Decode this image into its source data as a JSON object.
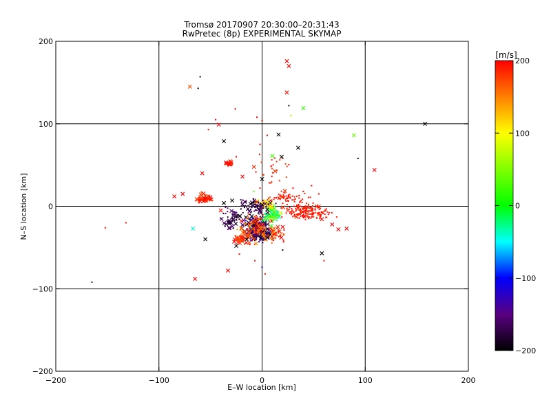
{
  "chart_data": {
    "type": "scatter",
    "title": "Tromsø 20170907 20:30:00–20:31:43",
    "subtitle": "RwPretec (8p) EXPERIMENTAL SKYMAP",
    "xlabel": "E–W location [km]",
    "ylabel": "N–S location [km]",
    "xlim": [
      -200,
      200
    ],
    "ylim": [
      -200,
      200
    ],
    "xticks": [
      -200,
      -100,
      0,
      100,
      200
    ],
    "yticks": [
      -200,
      -100,
      0,
      100,
      200
    ],
    "grid": true,
    "colorbar": {
      "label": "[m/s]",
      "min": -200,
      "max": 200,
      "ticks": [
        200,
        100,
        0,
        -100,
        -200
      ],
      "gradient": [
        [
          -200,
          "#000000"
        ],
        [
          -150,
          "#5a0080"
        ],
        [
          -100,
          "#0000ff"
        ],
        [
          -50,
          "#00ffff"
        ],
        [
          0,
          "#00ff00"
        ],
        [
          100,
          "#ffff00"
        ],
        [
          150,
          "#ff8000"
        ],
        [
          200,
          "#ff0000"
        ]
      ]
    },
    "crosses": [
      {
        "x": 24,
        "y": 176,
        "v": 200
      },
      {
        "x": 26,
        "y": 170,
        "v": 200
      },
      {
        "x": -70,
        "y": 145,
        "v": 170
      },
      {
        "x": 24,
        "y": 138,
        "v": 200
      },
      {
        "x": 40,
        "y": 119,
        "v": 20
      },
      {
        "x": 158,
        "y": 100,
        "v": -200
      },
      {
        "x": -42,
        "y": 99,
        "v": 200
      },
      {
        "x": 16,
        "y": 87,
        "v": -200
      },
      {
        "x": 89,
        "y": 86,
        "v": 40
      },
      {
        "x": -37,
        "y": 79,
        "v": -200
      },
      {
        "x": 35,
        "y": 71,
        "v": -200
      },
      {
        "x": 10,
        "y": 61,
        "v": 20
      },
      {
        "x": 19,
        "y": 60,
        "v": -200
      },
      {
        "x": -35,
        "y": 53,
        "v": 200
      },
      {
        "x": -32,
        "y": 51,
        "v": 200
      },
      {
        "x": 109,
        "y": 44,
        "v": 200
      },
      {
        "x": -58,
        "y": 40,
        "v": 200
      },
      {
        "x": -19,
        "y": 36,
        "v": 200
      },
      {
        "x": 0,
        "y": 33,
        "v": -200
      },
      {
        "x": -85,
        "y": 12,
        "v": 200
      },
      {
        "x": -77,
        "y": 15,
        "v": 200
      },
      {
        "x": -50,
        "y": 11,
        "v": 200
      },
      {
        "x": -55,
        "y": 9,
        "v": 200
      },
      {
        "x": -60,
        "y": 6,
        "v": 200
      },
      {
        "x": -37,
        "y": 4,
        "v": -200
      },
      {
        "x": -5,
        "y": 5,
        "v": 180
      },
      {
        "x": 3,
        "y": 3,
        "v": -150
      },
      {
        "x": 8,
        "y": 2,
        "v": 120
      },
      {
        "x": 12,
        "y": -3,
        "v": 30
      },
      {
        "x": 18,
        "y": -8,
        "v": 80
      },
      {
        "x": -10,
        "y": -12,
        "v": -200
      },
      {
        "x": -20,
        "y": -18,
        "v": 200
      },
      {
        "x": 5,
        "y": -15,
        "v": 20
      },
      {
        "x": 20,
        "y": -25,
        "v": 200
      },
      {
        "x": 9,
        "y": -24,
        "v": 20
      },
      {
        "x": -67,
        "y": -27,
        "v": -40
      },
      {
        "x": -55,
        "y": -40,
        "v": -200
      },
      {
        "x": -27,
        "y": -43,
        "v": 200
      },
      {
        "x": -15,
        "y": -40,
        "v": -200
      },
      {
        "x": -5,
        "y": -35,
        "v": -160
      },
      {
        "x": -25,
        "y": -48,
        "v": -200
      },
      {
        "x": 5,
        "y": -38,
        "v": -200
      },
      {
        "x": 58,
        "y": -57,
        "v": -200
      },
      {
        "x": -33,
        "y": -78,
        "v": 200
      },
      {
        "x": -65,
        "y": -88,
        "v": 200
      },
      {
        "x": 68,
        "y": -22,
        "v": 200
      },
      {
        "x": 74,
        "y": -28,
        "v": 200
      },
      {
        "x": 82,
        "y": -27,
        "v": 200
      },
      {
        "x": 41,
        "y": -12,
        "v": 200
      },
      {
        "x": -29,
        "y": 7,
        "v": -200
      },
      {
        "x": -40,
        "y": -5,
        "v": 200
      }
    ],
    "dots": [
      {
        "x": -60,
        "y": 157,
        "v": -200
      },
      {
        "x": -62,
        "y": 143,
        "v": -200
      },
      {
        "x": 26,
        "y": 122,
        "v": -200
      },
      {
        "x": -26,
        "y": 118,
        "v": 200
      },
      {
        "x": 28,
        "y": 110,
        "v": 60
      },
      {
        "x": -5,
        "y": 108,
        "v": 200
      },
      {
        "x": -45,
        "y": 105,
        "v": 200
      },
      {
        "x": 0,
        "y": 104,
        "v": 200
      },
      {
        "x": -52,
        "y": 93,
        "v": 200
      },
      {
        "x": 93,
        "y": 58,
        "v": -200
      },
      {
        "x": -2,
        "y": 75,
        "v": 200
      },
      {
        "x": 5,
        "y": 86,
        "v": 200
      },
      {
        "x": -165,
        "y": -92,
        "v": -200
      },
      {
        "x": -152,
        "y": -26,
        "v": 200
      },
      {
        "x": -132,
        "y": -20,
        "v": 200
      },
      {
        "x": 60,
        "y": -66,
        "v": 200
      },
      {
        "x": 0,
        "y": -74,
        "v": -100
      },
      {
        "x": -7,
        "y": -66,
        "v": 200
      },
      {
        "x": 3,
        "y": -82,
        "v": 200
      },
      {
        "x": 20,
        "y": -53,
        "v": -200
      },
      {
        "x": -22,
        "y": -58,
        "v": 200
      },
      {
        "x": 30,
        "y": 22,
        "v": 200
      },
      {
        "x": 40,
        "y": 18,
        "v": 200
      },
      {
        "x": 55,
        "y": 15,
        "v": 200
      },
      {
        "x": 48,
        "y": 25,
        "v": 200
      },
      {
        "x": -2,
        "y": 22,
        "v": 200
      },
      {
        "x": -8,
        "y": 18,
        "v": 30
      },
      {
        "x": -25,
        "y": 60,
        "v": 200
      }
    ],
    "clusters": [
      {
        "cx": -5,
        "cy": -28,
        "sx": 12,
        "sy": 14,
        "n": 230,
        "vmin": -200,
        "vmax": -120,
        "cross": 0.35
      },
      {
        "cx": -5,
        "cy": -28,
        "sx": 16,
        "sy": 16,
        "n": 110,
        "vmin": 140,
        "vmax": 200,
        "cross": 0.35
      },
      {
        "cx": 10,
        "cy": -10,
        "sx": 7,
        "sy": 9,
        "n": 80,
        "vmin": -40,
        "vmax": 60,
        "cross": 0.25
      },
      {
        "cx": 3,
        "cy": 3,
        "sx": 7,
        "sy": 6,
        "n": 45,
        "vmin": 80,
        "vmax": 130,
        "cross": 0.2
      },
      {
        "cx": -5,
        "cy": 0,
        "sx": 14,
        "sy": 8,
        "n": 70,
        "vmin": -200,
        "vmax": -150,
        "cross": 0.25
      },
      {
        "cx": 45,
        "cy": -6,
        "sx": 22,
        "sy": 10,
        "n": 190,
        "vmin": 180,
        "vmax": 200,
        "cross": 0.06
      },
      {
        "cx": 25,
        "cy": 10,
        "sx": 16,
        "sy": 8,
        "n": 60,
        "vmin": 180,
        "vmax": 200,
        "cross": 0.05
      },
      {
        "cx": -55,
        "cy": 10,
        "sx": 7,
        "sy": 5,
        "n": 45,
        "vmin": 170,
        "vmax": 200,
        "cross": 0.35
      },
      {
        "cx": -20,
        "cy": -40,
        "sx": 8,
        "sy": 6,
        "n": 45,
        "vmin": 160,
        "vmax": 200,
        "cross": 0.4
      },
      {
        "cx": -32,
        "cy": 51,
        "sx": 4,
        "sy": 3,
        "n": 18,
        "vmin": 180,
        "vmax": 200,
        "cross": 0.3
      },
      {
        "cx": 10,
        "cy": 40,
        "sx": 18,
        "sy": 25,
        "n": 28,
        "vmin": 170,
        "vmax": 200,
        "cross": 0.1
      },
      {
        "cx": -30,
        "cy": -15,
        "sx": 10,
        "sy": 12,
        "n": 50,
        "vmin": -200,
        "vmax": -150,
        "cross": 0.3
      },
      {
        "cx": 15,
        "cy": -35,
        "sx": 8,
        "sy": 10,
        "n": 40,
        "vmin": 160,
        "vmax": 200,
        "cross": 0.15
      }
    ]
  }
}
